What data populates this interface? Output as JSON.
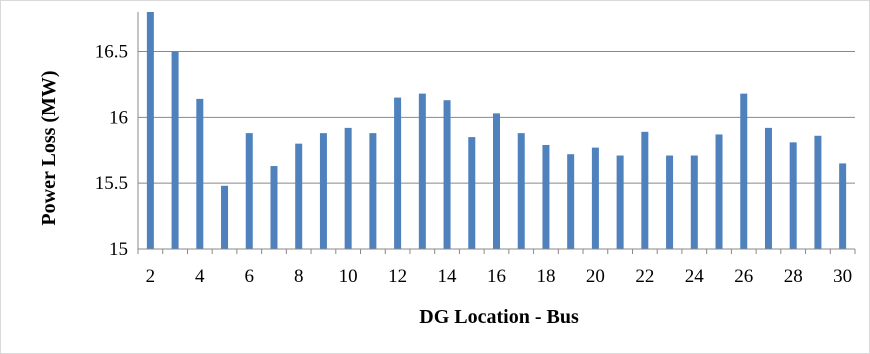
{
  "chart_data": {
    "type": "bar",
    "title": "",
    "xlabel": "DG Location - Bus",
    "ylabel": "Power Loss (MW)",
    "ylim": [
      15,
      16.8
    ],
    "yticks": [
      15,
      15.5,
      16,
      16.5
    ],
    "ytick_labels": [
      "15",
      "15.5",
      "16",
      "16.5"
    ],
    "categories": [
      2,
      3,
      4,
      5,
      6,
      7,
      8,
      9,
      10,
      11,
      12,
      13,
      14,
      15,
      16,
      17,
      18,
      19,
      20,
      21,
      22,
      23,
      24,
      25,
      26,
      27,
      28,
      29,
      30
    ],
    "xtick_labels": [
      "2",
      "4",
      "6",
      "8",
      "10",
      "12",
      "14",
      "16",
      "18",
      "20",
      "22",
      "24",
      "26",
      "28",
      "30"
    ],
    "values": [
      16.8,
      16.5,
      16.14,
      15.48,
      15.88,
      15.63,
      15.8,
      15.88,
      15.92,
      15.88,
      16.15,
      16.18,
      16.13,
      15.85,
      16.03,
      15.88,
      15.79,
      15.72,
      15.77,
      15.71,
      15.89,
      15.71,
      15.71,
      15.87,
      16.18,
      15.92,
      15.81,
      15.86,
      15.65
    ],
    "grid": true,
    "legend": "none",
    "bar_color": "#4f81bd",
    "grid_color": "#888888"
  }
}
